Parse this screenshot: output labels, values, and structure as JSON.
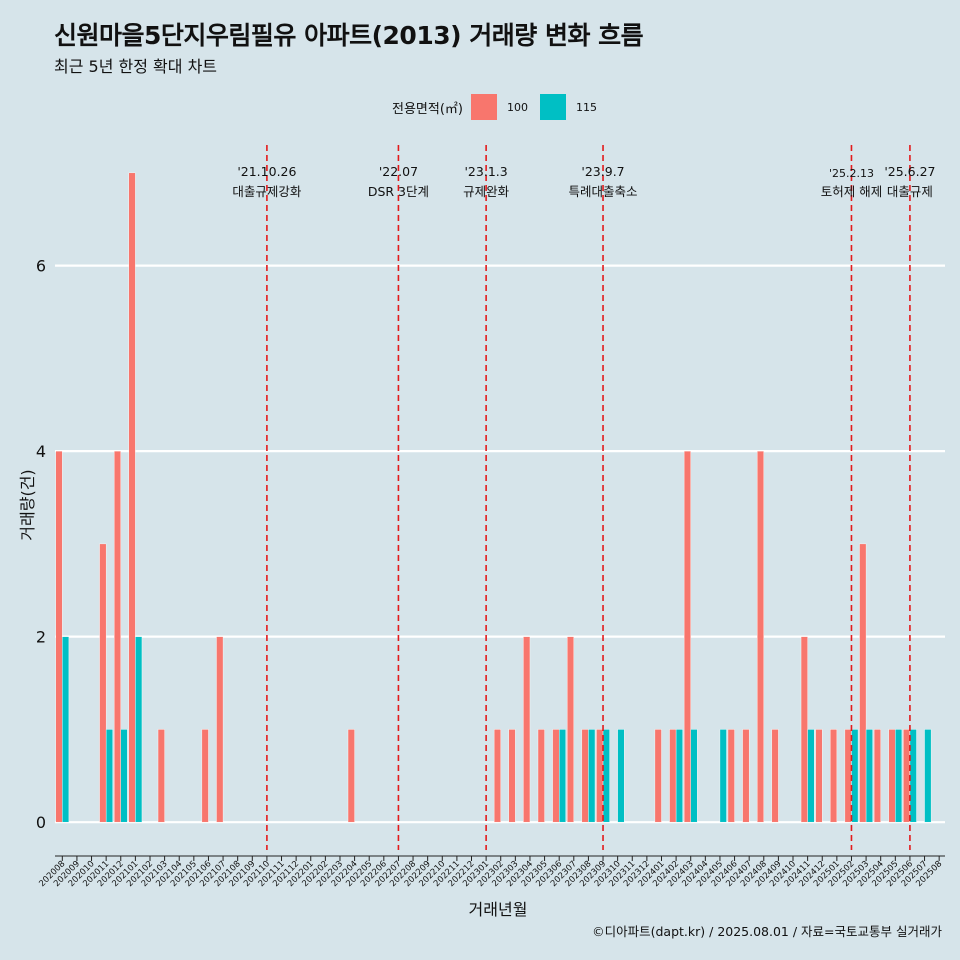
{
  "title": "신원마을5단지우림필유 아파트(2013) 거래량 변화 흐름",
  "subtitle": "최근 5년 한정 확대 차트",
  "caption": "©디아파트(dapt.kr) / 2025.08.01 / 자료=국토교통부 실거래가",
  "legend": {
    "title": "전용면적(㎡)",
    "items": [
      {
        "label": "100",
        "color": "#f8766d"
      },
      {
        "label": "115",
        "color": "#00bfc4"
      }
    ]
  },
  "chart_data": {
    "type": "bar",
    "xlabel": "거래년월",
    "ylabel": "거래량(건)",
    "ylim": [
      -0.3,
      7.3
    ],
    "yticks": [
      0,
      2,
      4,
      6
    ],
    "grid": "horizontal major lines",
    "legend_position": "top",
    "categories": [
      "202008",
      "202009",
      "202010",
      "202011",
      "202012",
      "202101",
      "202102",
      "202103",
      "202104",
      "202105",
      "202106",
      "202107",
      "202108",
      "202109",
      "202110",
      "202111",
      "202112",
      "202201",
      "202202",
      "202203",
      "202204",
      "202205",
      "202206",
      "202207",
      "202208",
      "202209",
      "202210",
      "202211",
      "202212",
      "202301",
      "202302",
      "202303",
      "202304",
      "202305",
      "202306",
      "202307",
      "202308",
      "202309",
      "202310",
      "202311",
      "202312",
      "202401",
      "202402",
      "202403",
      "202404",
      "202405",
      "202406",
      "202407",
      "202408",
      "202409",
      "202410",
      "202411",
      "202412",
      "202501",
      "202502",
      "202503",
      "202504",
      "202505",
      "202506",
      "202507",
      "202508"
    ],
    "series": [
      {
        "name": "100",
        "color": "#f8766d",
        "values": [
          4,
          0,
          0,
          3,
          4,
          7,
          0,
          1,
          0,
          0,
          1,
          2,
          0,
          0,
          0,
          0,
          0,
          0,
          0,
          0,
          1,
          0,
          0,
          0,
          0,
          0,
          0,
          0,
          0,
          0,
          1,
          1,
          2,
          1,
          1,
          2,
          1,
          1,
          0,
          0,
          0,
          1,
          1,
          4,
          0,
          0,
          1,
          1,
          4,
          1,
          0,
          2,
          1,
          1,
          1,
          3,
          1,
          1,
          1,
          0,
          0
        ]
      },
      {
        "name": "115",
        "color": "#00bfc4",
        "values": [
          2,
          0,
          0,
          1,
          1,
          2,
          0,
          0,
          0,
          0,
          0,
          0,
          0,
          0,
          0,
          0,
          0,
          0,
          0,
          0,
          0,
          0,
          0,
          0,
          0,
          0,
          0,
          0,
          0,
          0,
          0,
          0,
          0,
          0,
          1,
          0,
          1,
          1,
          1,
          0,
          0,
          0,
          1,
          1,
          0,
          1,
          0,
          0,
          0,
          0,
          0,
          1,
          0,
          0,
          1,
          1,
          0,
          1,
          1,
          1,
          0
        ]
      }
    ],
    "events": [
      {
        "date": "'21.10.26",
        "label": "대출규제강화",
        "at": "202110"
      },
      {
        "date": "'22.07",
        "label": "DSR 3단계",
        "at": "202207"
      },
      {
        "date": "'23.1.3",
        "label": "규제완화",
        "at": "202301"
      },
      {
        "date": "'23.9.7",
        "label": "특례대출축소",
        "at": "202309"
      },
      {
        "date": "'25.2.13",
        "label": "토허제 해제",
        "at": "202502"
      },
      {
        "date": "'25.6.27",
        "label": "대출규제",
        "at": "202506"
      }
    ],
    "event_line_color": "#e31a1c"
  }
}
